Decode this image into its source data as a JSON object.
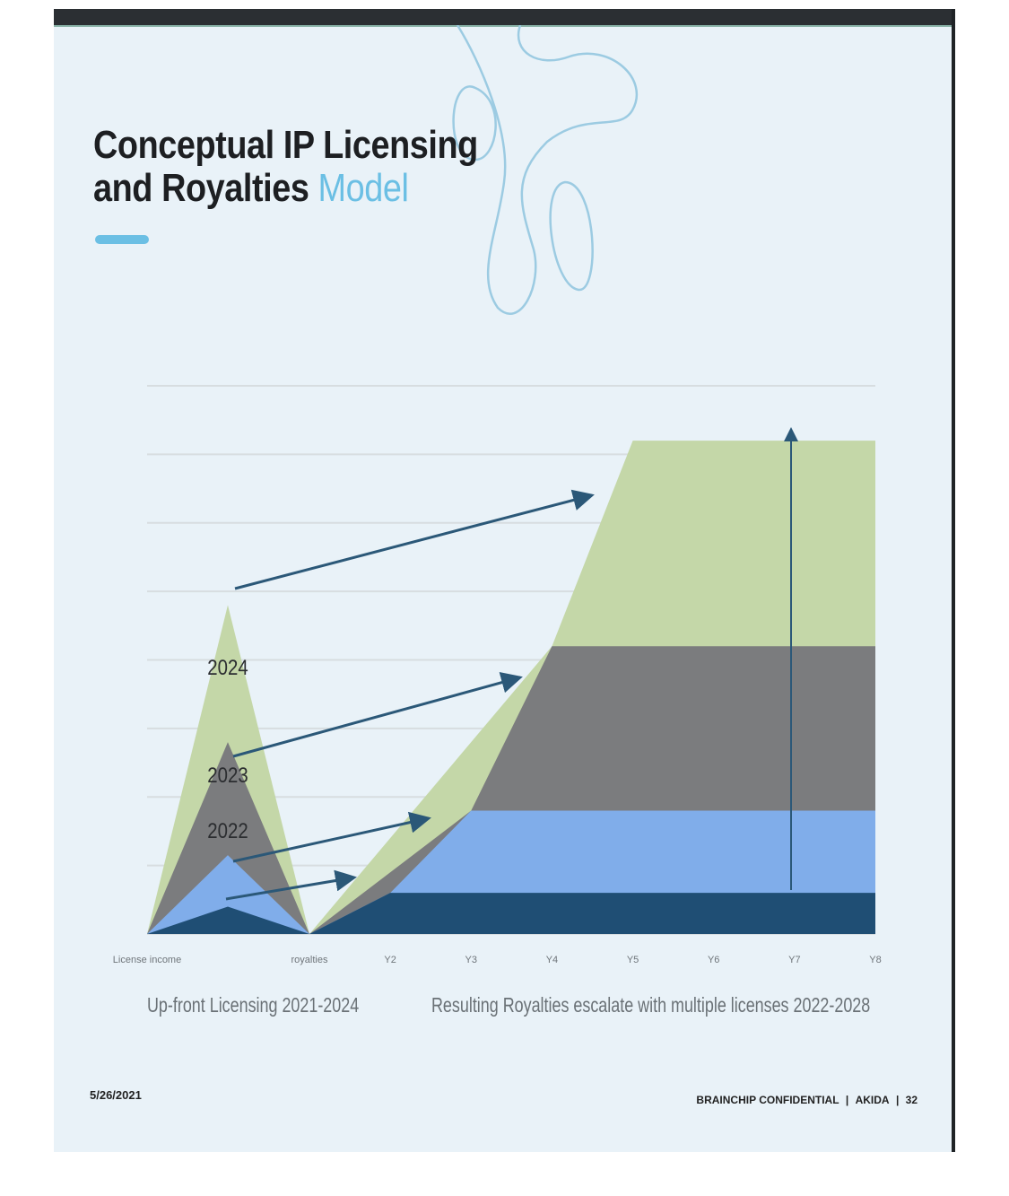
{
  "slide": {
    "title_line1": "Conceptual IP Licensing",
    "title_line2_main": "and Royalties",
    "title_line2_accent": "Model",
    "date": "5/26/2021",
    "footer_company": "BRAINCHIP CONFIDENTIAL",
    "footer_product": "AKIDA",
    "footer_page": "32",
    "accent_color": "#6bbfe4"
  },
  "chart_data": {
    "type": "area",
    "x_ticks": [
      "License income",
      "royalties",
      "Y2",
      "Y3",
      "Y4",
      "Y5",
      "Y6",
      "Y7",
      "Y8"
    ],
    "captions": {
      "left": "Up-front Licensing 2021-2024",
      "right": "Resulting Royalties escalate with multiple licenses 2022-2028"
    },
    "ylim": [
      0,
      8
    ],
    "grid": true,
    "licensing_peaks": [
      {
        "label": "",
        "value": 0.4,
        "color": "#1f4e74"
      },
      {
        "label": "2022",
        "value": 1.15,
        "color": "#80adea"
      },
      {
        "label": "2023",
        "value": 2.8,
        "color": "#7b7c7e"
      },
      {
        "label": "2024",
        "value": 4.8,
        "color": "#c4d7a8"
      }
    ],
    "royalty_layers": [
      {
        "color": "#1f4e74",
        "upper": [
          [
            1,
            0
          ],
          [
            2,
            0.6
          ],
          [
            8,
            0.6
          ]
        ]
      },
      {
        "color": "#80adea",
        "upper": [
          [
            2,
            0.6
          ],
          [
            3,
            1.8
          ],
          [
            8,
            1.8
          ]
        ]
      },
      {
        "color": "#7b7c7e",
        "upper": [
          [
            3,
            1.8
          ],
          [
            4,
            4.2
          ],
          [
            8,
            4.2
          ]
        ]
      },
      {
        "color": "#c4d7a8",
        "upper": [
          [
            4,
            4.2
          ],
          [
            5,
            7.2
          ],
          [
            8,
            7.2
          ]
        ]
      }
    ],
    "arrow_color": "#2b5878"
  }
}
